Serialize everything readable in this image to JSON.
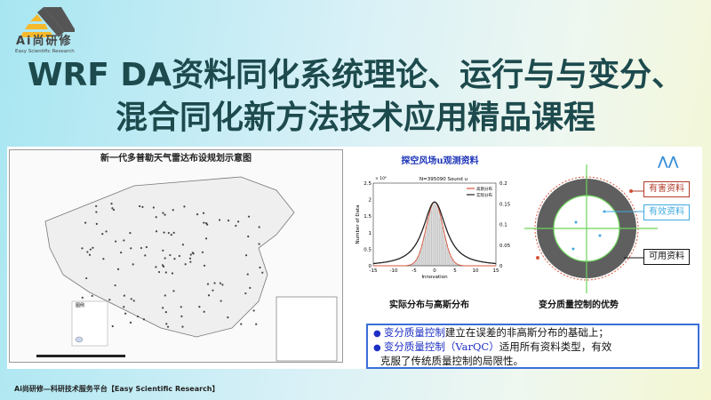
{
  "logo": {
    "text": "Ai尚研修",
    "subtitle": "Easy Scientific Research"
  },
  "title": {
    "line1": "WRF DA资料同化系统理论、运行与与变分、",
    "line2": "混合同化新方法技术应用精品课程"
  },
  "map": {
    "title": "新一代多普勒天气雷达布设规划示意图",
    "legend_title": "图例"
  },
  "histogram": {
    "title": "探空风场u观测资料",
    "caption": "实际分布与高斯分布"
  },
  "chart_data": {
    "type": "line",
    "annotation": "N=395090     Sound u",
    "xlabel": "Innovation",
    "ylabel": "Number of Data",
    "y_multiplier": "× 10⁴",
    "xlim": [
      -15,
      15
    ],
    "ylim": [
      0,
      2.5
    ],
    "y2lim": [
      0,
      0.2
    ],
    "xticks": [
      "-15",
      "-10",
      "-5",
      "0",
      "5",
      "10",
      "15"
    ],
    "yticks": [
      "0",
      "0.5",
      "1",
      "1.5",
      "2",
      "2.5"
    ],
    "y2ticks": [
      "0",
      "0.05",
      "0.1",
      "0.15",
      "0.2"
    ],
    "series": [
      {
        "name": "高斯分布",
        "color": "#d9553a",
        "sigma": 2.05,
        "peak": 1.93
      },
      {
        "name": "实际分布",
        "color": "#222222",
        "sigma": 2.3,
        "peak": 1.93
      }
    ]
  },
  "qc": {
    "caption": "变分质量控制的优势",
    "labels": {
      "harmful": "有害资料",
      "effective": "有效资料",
      "usable": "可用资料"
    },
    "colors": {
      "harmful": "#b23a2a",
      "effective": "#3fa9e0",
      "usable": "#111111",
      "ring": "#5f5f5f",
      "axis": "#6cd35a"
    }
  },
  "textbox": {
    "b1_hl": "变分质量控制",
    "b1_rest": "建立在误差的非高斯分布的基础上；",
    "b2_hl": "变分质量控制（VarQC）",
    "b2_rest": "适用所有资料类型，有效",
    "b2_cont": "克服了传统质量控制的局限性。"
  },
  "footer": "Ai尚研修—科研技术服务平台【Easy Scientific Research】"
}
